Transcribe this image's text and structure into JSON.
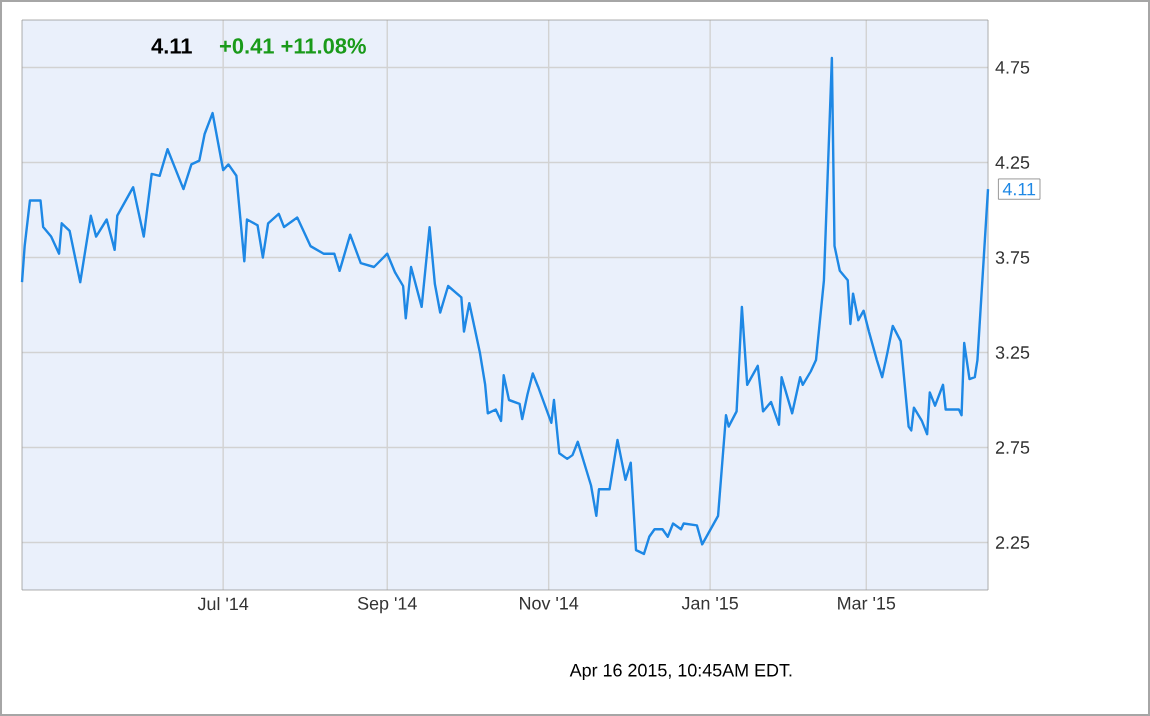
{
  "chart_data": {
    "type": "line",
    "title": "4.11",
    "subtitle": "+0.41  +11.08%",
    "x": [
      "2014-04-16",
      "2014-04-17",
      "2014-04-19",
      "2014-04-23",
      "2014-04-24",
      "2014-04-27",
      "2014-04-30",
      "2014-05-01",
      "2014-05-04",
      "2014-05-08",
      "2014-05-12",
      "2014-05-14",
      "2014-05-18",
      "2014-05-21",
      "2014-05-22",
      "2014-05-28",
      "2014-06-01",
      "2014-06-04",
      "2014-06-07",
      "2014-06-10",
      "2014-06-16",
      "2014-06-19",
      "2014-06-22",
      "2014-06-24",
      "2014-06-27",
      "2014-07-01",
      "2014-07-03",
      "2014-07-06",
      "2014-07-09",
      "2014-07-10",
      "2014-07-14",
      "2014-07-16",
      "2014-07-18",
      "2014-07-22",
      "2014-07-24",
      "2014-07-29",
      "2014-08-03",
      "2014-08-08",
      "2014-08-12",
      "2014-08-14",
      "2014-08-18",
      "2014-08-22",
      "2014-08-27",
      "2014-09-01",
      "2014-09-04",
      "2014-09-07",
      "2014-09-08",
      "2014-09-10",
      "2014-09-14",
      "2014-09-17",
      "2014-09-19",
      "2014-09-21",
      "2014-09-24",
      "2014-09-29",
      "2014-09-30",
      "2014-10-02",
      "2014-10-06",
      "2014-10-08",
      "2014-10-09",
      "2014-10-12",
      "2014-10-14",
      "2014-10-15",
      "2014-10-17",
      "2014-10-21",
      "2014-10-22",
      "2014-10-24",
      "2014-10-26",
      "2014-10-28",
      "2014-11-02",
      "2014-11-03",
      "2014-11-05",
      "2014-11-08",
      "2014-11-10",
      "2014-11-12",
      "2014-11-17",
      "2014-11-19",
      "2014-11-20",
      "2014-11-24",
      "2014-11-27",
      "2014-11-30",
      "2014-12-02",
      "2014-12-04",
      "2014-12-07",
      "2014-12-09",
      "2014-12-11",
      "2014-12-14",
      "2014-12-16",
      "2014-12-18",
      "2014-12-21",
      "2014-12-22",
      "2014-12-27",
      "2014-12-29",
      "2015-01-04",
      "2015-01-07",
      "2015-01-08",
      "2015-01-11",
      "2015-01-13",
      "2015-01-15",
      "2015-01-19",
      "2015-01-21",
      "2015-01-24",
      "2015-01-27",
      "2015-01-28",
      "2015-02-01",
      "2015-02-04",
      "2015-02-05",
      "2015-02-08",
      "2015-02-10",
      "2015-02-13",
      "2015-02-16",
      "2015-02-17",
      "2015-02-19",
      "2015-02-22",
      "2015-02-23",
      "2015-02-24",
      "2015-02-26",
      "2015-02-28",
      "2015-03-02",
      "2015-03-05",
      "2015-03-07",
      "2015-03-09",
      "2015-03-11",
      "2015-03-14",
      "2015-03-17",
      "2015-03-18",
      "2015-03-19",
      "2015-03-22",
      "2015-03-24",
      "2015-03-25",
      "2015-03-27",
      "2015-03-30",
      "2015-03-31",
      "2015-04-05",
      "2015-04-06",
      "2015-04-07",
      "2015-04-09",
      "2015-04-11",
      "2015-04-12",
      "2015-04-16"
    ],
    "values": [
      3.62,
      3.81,
      4.05,
      4.05,
      3.91,
      3.86,
      3.77,
      3.93,
      3.89,
      3.62,
      3.97,
      3.86,
      3.95,
      3.79,
      3.97,
      4.12,
      3.86,
      4.19,
      4.18,
      4.32,
      4.11,
      4.24,
      4.26,
      4.4,
      4.51,
      4.21,
      4.24,
      4.18,
      3.73,
      3.95,
      3.92,
      3.75,
      3.93,
      3.98,
      3.91,
      3.96,
      3.81,
      3.77,
      3.77,
      3.68,
      3.87,
      3.72,
      3.7,
      3.77,
      3.67,
      3.6,
      3.43,
      3.7,
      3.49,
      3.91,
      3.61,
      3.46,
      3.6,
      3.54,
      3.36,
      3.51,
      3.25,
      3.08,
      2.93,
      2.95,
      2.89,
      3.13,
      3.0,
      2.98,
      2.9,
      3.03,
      3.14,
      3.07,
      2.88,
      3.0,
      2.72,
      2.69,
      2.71,
      2.78,
      2.55,
      2.39,
      2.53,
      2.53,
      2.79,
      2.58,
      2.67,
      2.21,
      2.19,
      2.28,
      2.32,
      2.32,
      2.28,
      2.35,
      2.32,
      2.35,
      2.34,
      2.24,
      2.39,
      2.92,
      2.86,
      2.94,
      3.49,
      3.08,
      3.18,
      2.94,
      2.99,
      2.87,
      3.12,
      2.93,
      3.12,
      3.08,
      3.15,
      3.21,
      3.63,
      4.8,
      3.81,
      3.68,
      3.63,
      3.4,
      3.56,
      3.42,
      3.47,
      3.36,
      3.21,
      3.12,
      3.25,
      3.39,
      3.31,
      2.86,
      2.84,
      2.96,
      2.89,
      2.82,
      3.04,
      2.97,
      3.08,
      2.95,
      2.95,
      2.92,
      3.3,
      3.11,
      3.12,
      3.21,
      4.11
    ],
    "color": "#1e88e5",
    "xlim": [
      "2014-04-16",
      "2015-04-16"
    ],
    "xticks": [
      {
        "value": "2014-07-01",
        "label": "Jul '14"
      },
      {
        "value": "2014-09-01",
        "label": "Sep '14"
      },
      {
        "value": "2014-11-01",
        "label": "Nov '14"
      },
      {
        "value": "2015-01-01",
        "label": "Jan '15"
      },
      {
        "value": "2015-03-01",
        "label": "Mar '15"
      }
    ],
    "ylim": [
      2,
      5
    ],
    "yticks": [
      2.25,
      2.75,
      3.25,
      3.75,
      4.25,
      4.75
    ],
    "grid": true,
    "marker": "none",
    "line_style": "solid",
    "annotations": [
      {
        "text": "4.11",
        "x": "2015-04-16",
        "y": 4.11
      },
      "Apr 16 2015, 10:45AM EDT."
    ]
  }
}
